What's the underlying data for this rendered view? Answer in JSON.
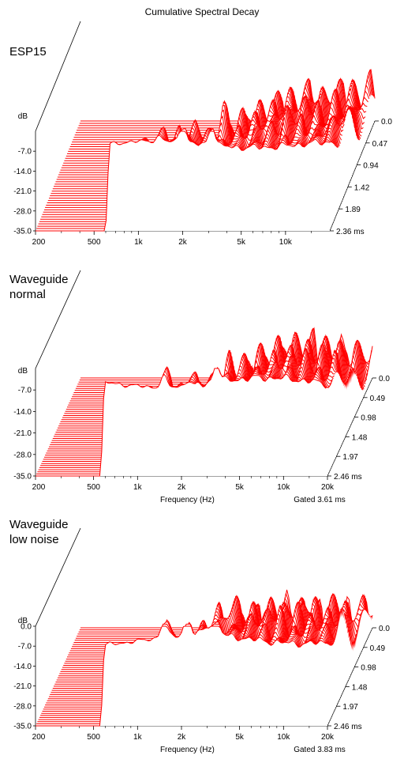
{
  "title": "Cumulative Spectral Decay",
  "chart_data": [
    {
      "type": "waterfall",
      "name": "ESP15",
      "label_lines": [
        "ESP15"
      ],
      "zlabel": "dB",
      "z_ticks": [
        "-7.0",
        "-14.0",
        "-21.0",
        "-28.0",
        "-35.0"
      ],
      "x_ticks": [
        "200",
        "500",
        "1k",
        "2k",
        "5k",
        "10k"
      ],
      "x_tick_values": [
        200,
        500,
        1000,
        2000,
        5000,
        10000
      ],
      "x_range": [
        200,
        20000
      ],
      "xlabel": "",
      "gated": "",
      "time_ticks": [
        "0.0",
        "0.47",
        "0.94",
        "1.42",
        "1.89",
        "2.36 ms"
      ],
      "time_range": [
        0,
        2.36
      ],
      "slices": 48,
      "onset_hz": 600,
      "line_color": "#ff0000"
    },
    {
      "type": "waterfall",
      "name": "Waveguide normal",
      "label_lines": [
        "Waveguide",
        "normal"
      ],
      "zlabel": "dB",
      "z_ticks": [
        "-7.0",
        "-14.0",
        "-21.0",
        "-28.0",
        "-35.0"
      ],
      "x_ticks": [
        "200",
        "500",
        "1k",
        "2k",
        "5k",
        "10k",
        "20k"
      ],
      "x_tick_values": [
        200,
        500,
        1000,
        2000,
        5000,
        10000,
        20000
      ],
      "x_range": [
        200,
        20000
      ],
      "xlabel": "Frequency (Hz)",
      "gated": "Gated 3.61 ms",
      "time_ticks": [
        "0.0",
        "0.49",
        "0.98",
        "1.48",
        "1.97",
        "2.46 ms"
      ],
      "time_range": [
        0,
        2.46
      ],
      "slices": 48,
      "onset_hz": 560,
      "line_color": "#ff0000"
    },
    {
      "type": "waterfall",
      "name": "Waveguide low noise",
      "label_lines": [
        "Waveguide",
        "low noise"
      ],
      "zlabel": "dB",
      "z_ticks": [
        "0.0",
        "-7.0",
        "-14.0",
        "-21.0",
        "-28.0",
        "-35.0"
      ],
      "x_ticks": [
        "200",
        "500",
        "1k",
        "2k",
        "5k",
        "10k",
        "20k"
      ],
      "x_tick_values": [
        200,
        500,
        1000,
        2000,
        5000,
        10000,
        20000
      ],
      "x_range": [
        200,
        20000
      ],
      "xlabel": "Frequency (Hz)",
      "gated": "Gated 3.83 ms",
      "time_ticks": [
        "0.0",
        "0.49",
        "0.98",
        "1.48",
        "1.97",
        "2.46 ms"
      ],
      "time_range": [
        0,
        2.46
      ],
      "slices": 48,
      "onset_hz": 560,
      "line_color": "#ff0000"
    }
  ]
}
